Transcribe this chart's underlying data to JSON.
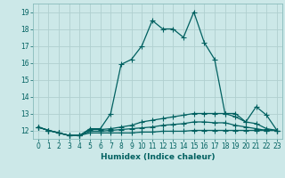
{
  "xlabel": "Humidex (Indice chaleur)",
  "background_color": "#cce8e8",
  "grid_color": "#b0d0d0",
  "line_color": "#006060",
  "x_values": [
    0,
    1,
    2,
    3,
    4,
    5,
    6,
    7,
    8,
    9,
    10,
    11,
    12,
    13,
    14,
    15,
    16,
    17,
    18,
    19,
    20,
    21,
    22,
    23
  ],
  "series": [
    [
      12.2,
      12.0,
      11.85,
      11.7,
      11.7,
      12.1,
      12.1,
      13.0,
      15.9,
      16.2,
      17.0,
      18.5,
      18.0,
      18.0,
      17.5,
      19.0,
      17.2,
      16.2,
      13.0,
      13.0,
      12.5,
      13.4,
      12.9,
      12.0
    ],
    [
      12.2,
      12.0,
      11.85,
      11.7,
      11.7,
      12.05,
      12.05,
      12.1,
      12.2,
      12.3,
      12.5,
      12.6,
      12.7,
      12.8,
      12.9,
      13.0,
      13.0,
      13.0,
      13.0,
      12.8,
      12.5,
      12.4,
      12.1,
      12.0
    ],
    [
      12.2,
      12.0,
      11.85,
      11.7,
      11.7,
      11.95,
      11.95,
      12.0,
      12.05,
      12.1,
      12.15,
      12.2,
      12.3,
      12.35,
      12.4,
      12.5,
      12.5,
      12.45,
      12.45,
      12.3,
      12.2,
      12.1,
      12.0,
      12.0
    ],
    [
      12.2,
      12.0,
      11.85,
      11.7,
      11.7,
      11.85,
      11.85,
      11.85,
      11.85,
      11.85,
      11.9,
      11.9,
      11.95,
      11.95,
      11.95,
      12.0,
      12.0,
      12.0,
      12.0,
      12.0,
      12.0,
      12.0,
      12.0,
      12.0
    ]
  ],
  "ylim": [
    11.5,
    19.5
  ],
  "yticks": [
    12,
    13,
    14,
    15,
    16,
    17,
    18,
    19
  ],
  "xticks": [
    0,
    1,
    2,
    3,
    4,
    5,
    6,
    7,
    8,
    9,
    10,
    11,
    12,
    13,
    14,
    15,
    16,
    17,
    18,
    19,
    20,
    21,
    22,
    23
  ],
  "marker": "+",
  "markersize": 4,
  "linewidth": 0.9,
  "tick_fontsize": 5.5,
  "xlabel_fontsize": 6.5
}
